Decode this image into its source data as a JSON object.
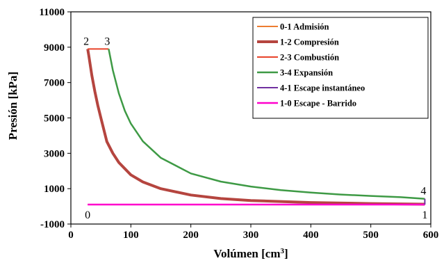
{
  "chart_data": {
    "type": "line",
    "xlabel": "Volúmen [cm",
    "xlabel_sup": "3",
    "xlabel_end": "]",
    "ylabel": "Presión [kPa]",
    "xlim": [
      0,
      600
    ],
    "ylim": [
      -1000,
      11000
    ],
    "xticks": [
      0,
      100,
      200,
      300,
      400,
      500,
      600
    ],
    "yticks": [
      -1000,
      1000,
      3000,
      5000,
      7000,
      9000,
      11000
    ],
    "grid": false,
    "legend_placement": "top-right",
    "series": [
      {
        "name": "0-1 Admisión",
        "color": "#ED7D31",
        "width": 2,
        "x": [
          28,
          590
        ],
        "y": [
          100,
          100
        ]
      },
      {
        "name": "1-2 Compresión",
        "color": "#B5453F",
        "width": 4,
        "x": [
          590,
          500,
          400,
          300,
          250,
          200,
          150,
          120,
          100,
          80,
          70,
          60,
          50,
          45,
          40,
          35,
          30,
          28
        ],
        "y": [
          120,
          155,
          215,
          330,
          440,
          640,
          1000,
          1380,
          1780,
          2480,
          3000,
          3660,
          5000,
          5700,
          6500,
          7400,
          8500,
          8900
        ]
      },
      {
        "name": "2-3 Combustión",
        "color": "#E8432A",
        "width": 2,
        "x": [
          28,
          63
        ],
        "y": [
          8900,
          8900
        ]
      },
      {
        "name": "3-4 Expansión",
        "color": "#3E9A45",
        "width": 2.5,
        "x": [
          63,
          70,
          80,
          90,
          100,
          120,
          150,
          200,
          250,
          300,
          350,
          400,
          450,
          500,
          550,
          590
        ],
        "y": [
          8900,
          7700,
          6380,
          5400,
          4680,
          3680,
          2740,
          1860,
          1400,
          1120,
          920,
          780,
          670,
          590,
          520,
          430
        ]
      },
      {
        "name": "4-1 Escape instantáneo",
        "color": "#7030A0",
        "width": 2,
        "x": [
          590,
          590
        ],
        "y": [
          430,
          100
        ]
      },
      {
        "name": "1-0 Escape - Barrido",
        "color": "#FF00CC",
        "width": 2.5,
        "x": [
          590,
          28
        ],
        "y": [
          100,
          100
        ]
      }
    ],
    "annotations": [
      {
        "text": "2",
        "x": 28,
        "y": 8900,
        "pos": "above-left"
      },
      {
        "text": "3",
        "x": 63,
        "y": 8900,
        "pos": "above-left"
      },
      {
        "text": "4",
        "x": 590,
        "y": 430,
        "pos": "above-left"
      },
      {
        "text": "0",
        "x": 28,
        "y": 100,
        "pos": "below-left"
      },
      {
        "text": "1",
        "x": 590,
        "y": 100,
        "pos": "below-left"
      }
    ]
  }
}
